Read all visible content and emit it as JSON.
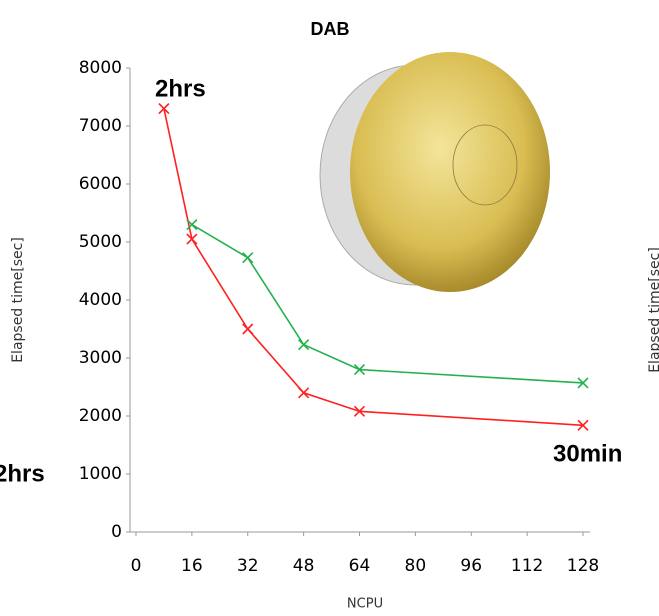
{
  "chart_data": {
    "type": "line",
    "title": "DAB",
    "x_label": "NCPU",
    "y_label": "Elapsed time[sec]",
    "annotations": [
      "2hrs",
      "30min",
      "2hrs",
      "Elapsed time[sec]"
    ],
    "series": [
      {
        "color": "#ff2020",
        "x": [
          8,
          16,
          32,
          48,
          64,
          128
        ],
        "values": [
          7300,
          5050,
          3500,
          2400,
          2080,
          1840
        ]
      },
      {
        "color": "#22b24c",
        "x": [
          16,
          32,
          48,
          64,
          128
        ],
        "values": [
          5300,
          4730,
          3230,
          2800,
          2570
        ]
      }
    ],
    "xlim": [
      0,
      128
    ],
    "xticks": [
      0,
      16,
      32,
      48,
      64,
      80,
      96,
      112,
      128
    ],
    "ylim": [
      0,
      8000
    ],
    "yticks": [
      0,
      1000,
      2000,
      3000,
      4000,
      5000,
      6000,
      7000,
      8000
    ],
    "grid": false
  }
}
